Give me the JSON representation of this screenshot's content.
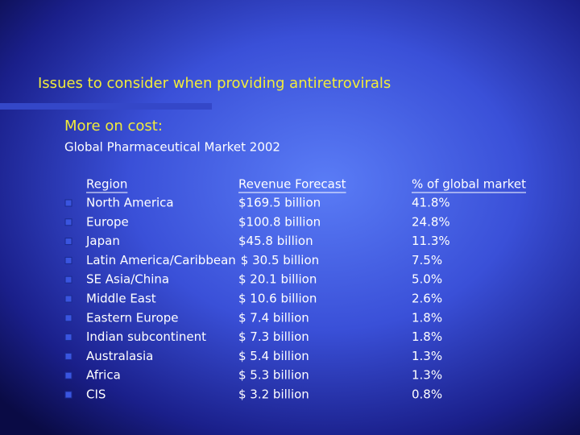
{
  "title": "Issues to consider when providing antiretrovirals",
  "heading": "More on cost:",
  "subtitle": "Global Pharmaceutical Market 2002",
  "table": {
    "header": [
      "Region",
      "Revenue Forecast",
      "% of global market"
    ],
    "rows": [
      [
        "North America",
        "$169.5 billion",
        "41.8%"
      ],
      [
        "Europe",
        "$100.8 billion",
        "24.8%"
      ],
      [
        "Japan",
        "$45.8 billion",
        "11.3%"
      ],
      [
        "Latin America/Caribbean",
        "$ 30.5 billion",
        "7.5%"
      ],
      [
        "SE Asia/China",
        "$ 20.1 billion",
        "5.0%"
      ],
      [
        "Middle East",
        "$ 10.6 billion",
        "2.6%"
      ],
      [
        "Eastern Europe",
        "$ 7.4 billion",
        "1.8%"
      ],
      [
        "Indian subcontinent",
        "$ 7.3 billion",
        "1.8%"
      ],
      [
        "Australasia",
        "$ 5.4 billion",
        "1.3%"
      ],
      [
        "Africa",
        "$ 5.3 billion",
        "1.3%"
      ],
      [
        "CIS",
        "$ 3.2 billion",
        "0.8%"
      ]
    ]
  }
}
